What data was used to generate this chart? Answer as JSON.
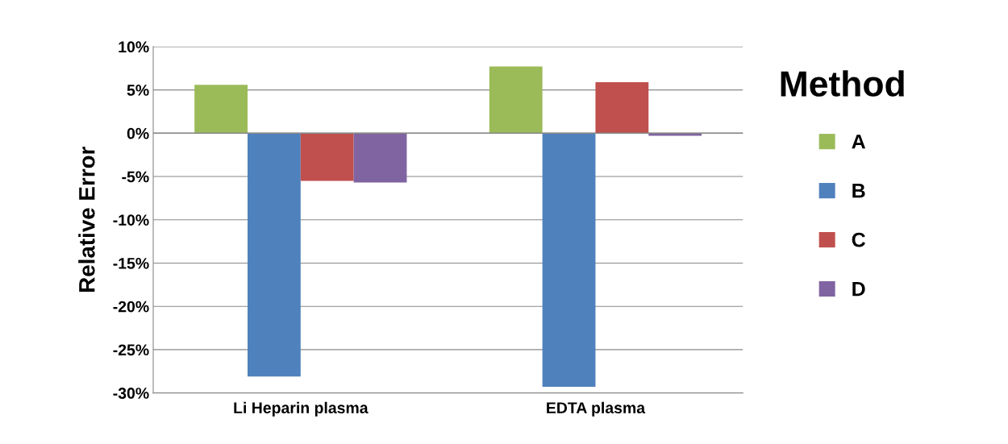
{
  "chart_data": {
    "type": "bar",
    "ylabel": "Relative Error",
    "legend_title": "Method",
    "categories": [
      "Li Heparin plasma",
      "EDTA plasma"
    ],
    "series": [
      {
        "name": "A",
        "color": "#9bbb59",
        "values": [
          5.6,
          7.7
        ]
      },
      {
        "name": "B",
        "color": "#4f81bd",
        "values": [
          -28.1,
          -29.3
        ]
      },
      {
        "name": "C",
        "color": "#c0504d",
        "values": [
          -5.5,
          5.9
        ]
      },
      {
        "name": "D",
        "color": "#8064a2",
        "values": [
          -5.7,
          -0.3
        ]
      }
    ],
    "ylim": [
      -30,
      10
    ],
    "yticks": [
      {
        "value": -30,
        "label": "-30%"
      },
      {
        "value": -25,
        "label": "-25%"
      },
      {
        "value": -20,
        "label": "-20%"
      },
      {
        "value": -15,
        "label": "-15%"
      },
      {
        "value": -10,
        "label": "-10%"
      },
      {
        "value": -5,
        "label": "-5%"
      },
      {
        "value": 0,
        "label": "0%"
      },
      {
        "value": 5,
        "label": "5%"
      },
      {
        "value": 10,
        "label": "10%"
      }
    ],
    "grid": "y",
    "legend": "right"
  }
}
